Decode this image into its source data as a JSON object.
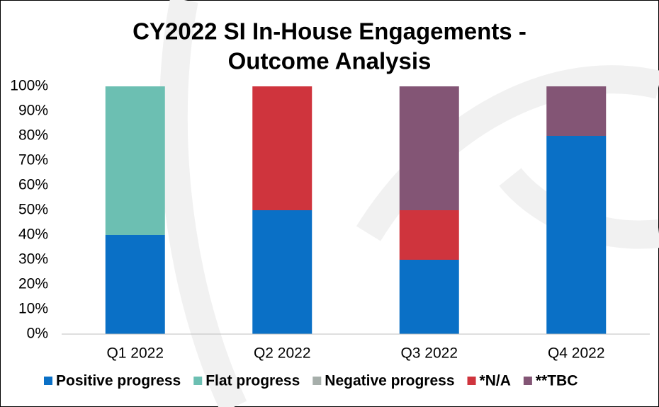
{
  "chart_data": {
    "type": "stacked_bar",
    "title": [
      "CY2022 SI In-House Engagements -",
      "Outcome Analysis"
    ],
    "categories": [
      "Q1 2022",
      "Q2 2022",
      "Q3 2022",
      "Q4 2022"
    ],
    "series": [
      {
        "name": "Positive progress",
        "color": "#0a70c6",
        "values": [
          40,
          50,
          30,
          80
        ]
      },
      {
        "name": "Flat progress",
        "color": "#6cbfb2",
        "values": [
          60,
          0,
          0,
          0
        ]
      },
      {
        "name": "Negative progress",
        "color": "#a6aeaa",
        "values": [
          0,
          0,
          0,
          0
        ]
      },
      {
        "name": "*N/A",
        "color": "#cf343d",
        "values": [
          0,
          50,
          20,
          0
        ]
      },
      {
        "name": "**TBC",
        "color": "#835575",
        "values": [
          0,
          0,
          50,
          20
        ]
      }
    ],
    "ylim": [
      0,
      100
    ],
    "yticks": [
      {
        "value": 0,
        "label": "0%"
      },
      {
        "value": 10,
        "label": "10%"
      },
      {
        "value": 20,
        "label": "20%"
      },
      {
        "value": 30,
        "label": "30%"
      },
      {
        "value": 40,
        "label": "40%"
      },
      {
        "value": 50,
        "label": "50%"
      },
      {
        "value": 60,
        "label": "60%"
      },
      {
        "value": 70,
        "label": "70%"
      },
      {
        "value": 80,
        "label": "80%"
      },
      {
        "value": 90,
        "label": "90%"
      },
      {
        "value": 100,
        "label": "100%"
      }
    ],
    "grid": false,
    "legend": "bottom"
  }
}
